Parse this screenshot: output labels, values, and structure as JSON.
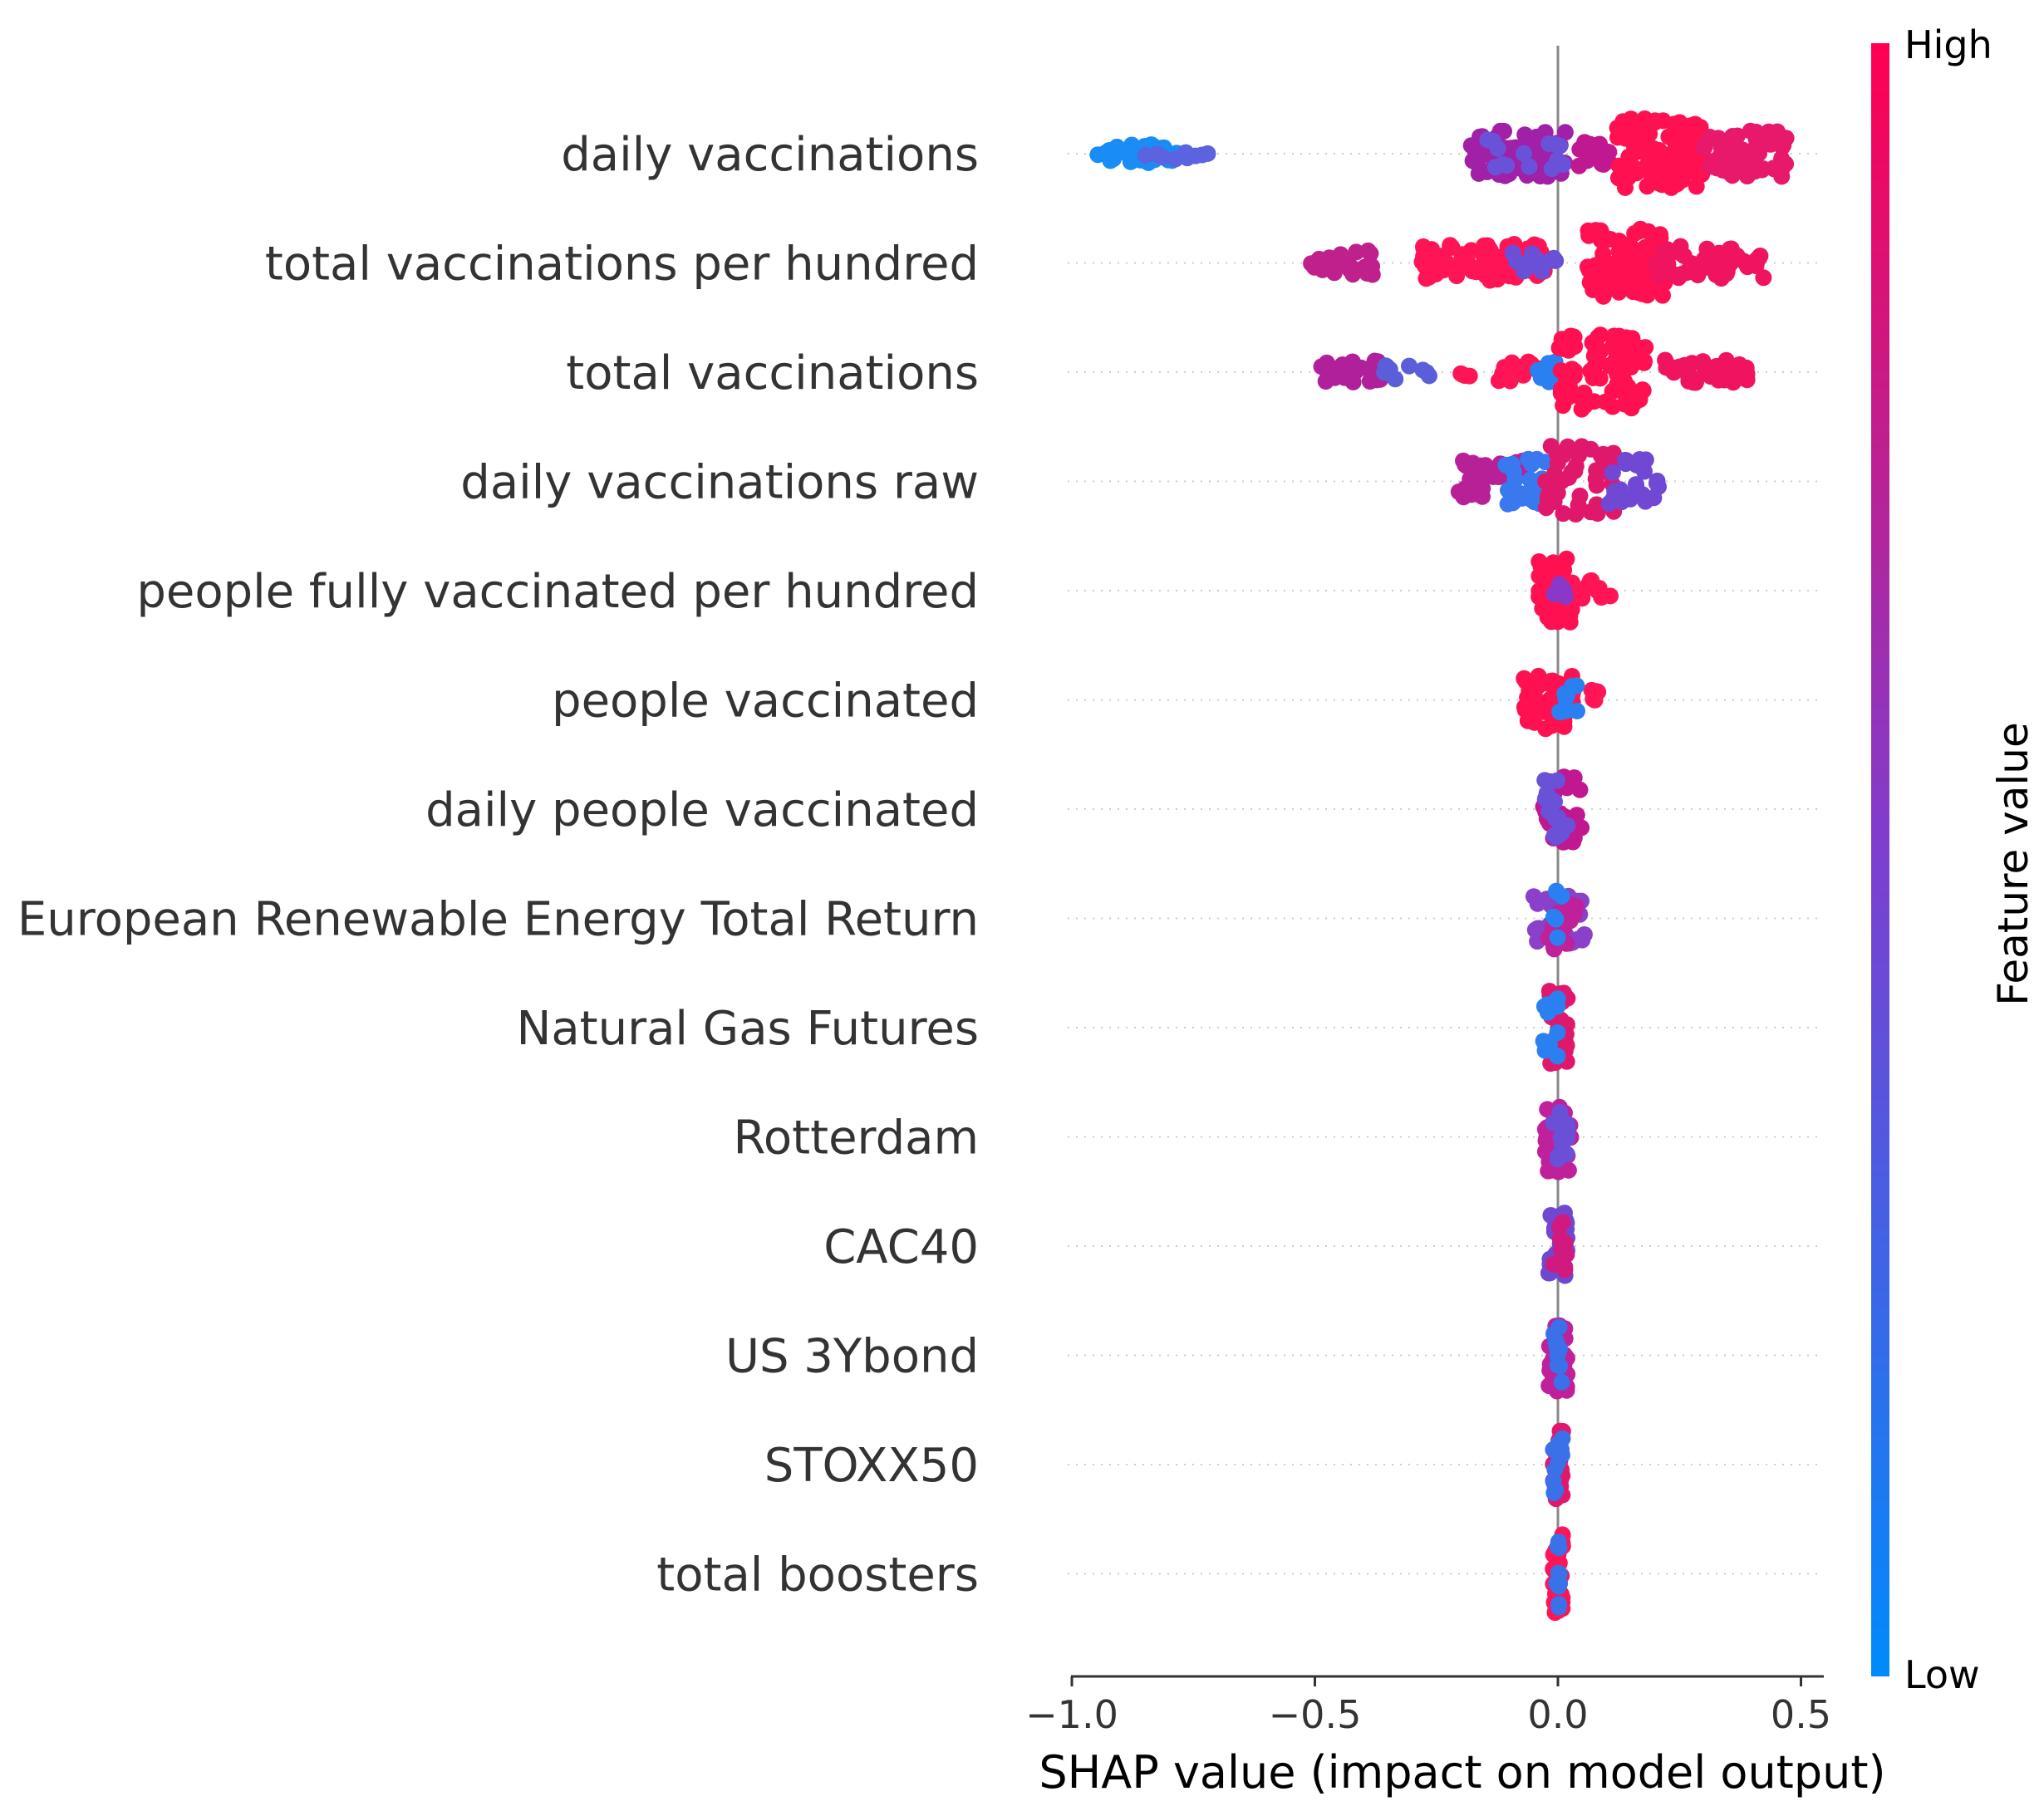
{
  "chart_data": {
    "type": "scatter",
    "subtype": "shap-beeswarm-summary",
    "xlabel": "SHAP value (impact on model output)",
    "xlim": [
      -1.0,
      0.55
    ],
    "xticks": [
      -1.0,
      -0.5,
      0.0,
      0.5
    ],
    "xtick_labels": [
      "−1.0",
      "−0.5",
      "0.0",
      "0.5"
    ],
    "colorbar": {
      "title": "Feature value",
      "high_label": "High",
      "low_label": "Low",
      "low_color": "#008bfb",
      "mid_color": "#7c3fd0",
      "high_color": "#ff0051"
    },
    "features": [
      {
        "name": "daily vaccinations",
        "clusters": [
          {
            "start": -0.95,
            "end": -0.78,
            "count": 40,
            "spread": 0.22,
            "color": "#1a8cf5"
          },
          {
            "start": -0.85,
            "end": -0.72,
            "count": 10,
            "spread": 0.14,
            "color": "#5b63e0"
          },
          {
            "start": -0.18,
            "end": 0.02,
            "count": 70,
            "spread": 0.55,
            "color": "#a020a8"
          },
          {
            "start": -0.18,
            "end": 0.05,
            "count": 14,
            "spread": 0.4,
            "color": "#6a52d8"
          },
          {
            "start": 0.04,
            "end": 0.12,
            "count": 16,
            "spread": 0.3,
            "color": "#c01890"
          },
          {
            "start": 0.12,
            "end": 0.3,
            "count": 90,
            "spread": 0.85,
            "color": "#ff1050"
          },
          {
            "start": 0.3,
            "end": 0.48,
            "count": 55,
            "spread": 0.55,
            "color": "#e8186a"
          }
        ]
      },
      {
        "name": "total vaccinations per hundred",
        "clusters": [
          {
            "start": -0.52,
            "end": -0.38,
            "count": 25,
            "spread": 0.3,
            "color": "#c0208c"
          },
          {
            "start": -0.28,
            "end": -0.02,
            "count": 80,
            "spread": 0.45,
            "color": "#ff1456"
          },
          {
            "start": -0.1,
            "end": 0.0,
            "count": 12,
            "spread": 0.25,
            "color": "#6a50d6"
          },
          {
            "start": 0.06,
            "end": 0.22,
            "count": 80,
            "spread": 0.85,
            "color": "#ff1050"
          },
          {
            "start": 0.2,
            "end": 0.43,
            "count": 50,
            "spread": 0.4,
            "color": "#f01460"
          }
        ]
      },
      {
        "name": "total vaccinations",
        "clusters": [
          {
            "start": -0.5,
            "end": -0.36,
            "count": 25,
            "spread": 0.3,
            "color": "#b0209a"
          },
          {
            "start": -0.36,
            "end": -0.26,
            "count": 10,
            "spread": 0.18,
            "color": "#5a5ed8"
          },
          {
            "start": -0.2,
            "end": -0.18,
            "count": 4,
            "spread": 0.15,
            "color": "#ff1456"
          },
          {
            "start": -0.13,
            "end": -0.02,
            "count": 16,
            "spread": 0.25,
            "color": "#ff1456"
          },
          {
            "start": -0.05,
            "end": 0.0,
            "count": 10,
            "spread": 0.25,
            "color": "#2a80f0"
          },
          {
            "start": 0.0,
            "end": 0.18,
            "count": 90,
            "spread": 0.9,
            "color": "#ff1050"
          },
          {
            "start": 0.22,
            "end": 0.39,
            "count": 45,
            "spread": 0.3,
            "color": "#f01460"
          }
        ]
      },
      {
        "name": "daily vaccinations raw",
        "clusters": [
          {
            "start": -0.21,
            "end": -0.07,
            "count": 40,
            "spread": 0.5,
            "color": "#b82098"
          },
          {
            "start": -0.12,
            "end": -0.02,
            "count": 25,
            "spread": 0.55,
            "color": "#3a78f0"
          },
          {
            "start": -0.03,
            "end": 0.12,
            "count": 45,
            "spread": 0.85,
            "color": "#e0186c"
          },
          {
            "start": 0.1,
            "end": 0.21,
            "count": 24,
            "spread": 0.55,
            "color": "#7048d4"
          }
        ]
      },
      {
        "name": "people fully vaccinated per hundred",
        "clusters": [
          {
            "start": -0.04,
            "end": 0.03,
            "count": 55,
            "spread": 0.85,
            "color": "#ff1050"
          },
          {
            "start": 0.02,
            "end": 0.11,
            "count": 14,
            "spread": 0.25,
            "color": "#ff1456"
          },
          {
            "start": -0.01,
            "end": 0.02,
            "count": 6,
            "spread": 0.3,
            "color": "#8a38c8"
          }
        ]
      },
      {
        "name": "people vaccinated",
        "clusters": [
          {
            "start": -0.07,
            "end": 0.03,
            "count": 50,
            "spread": 0.7,
            "color": "#ff1050"
          },
          {
            "start": 0.01,
            "end": 0.09,
            "count": 12,
            "spread": 0.25,
            "color": "#ff1456"
          },
          {
            "start": 0.0,
            "end": 0.04,
            "count": 10,
            "spread": 0.4,
            "color": "#2a80f0"
          }
        ]
      },
      {
        "name": "daily people vaccinated",
        "clusters": [
          {
            "start": -0.03,
            "end": 0.05,
            "count": 35,
            "spread": 0.8,
            "color": "#c01890"
          },
          {
            "start": -0.03,
            "end": 0.02,
            "count": 15,
            "spread": 0.7,
            "color": "#6a52d8"
          }
        ]
      },
      {
        "name": "European Renewable Energy Total Return",
        "clusters": [
          {
            "start": -0.05,
            "end": 0.06,
            "count": 30,
            "spread": 0.6,
            "color": "#8a40c8"
          },
          {
            "start": -0.02,
            "end": 0.04,
            "count": 15,
            "spread": 0.8,
            "color": "#c0209a"
          },
          {
            "start": -0.01,
            "end": 0.01,
            "count": 6,
            "spread": 0.7,
            "color": "#2a80f0"
          }
        ]
      },
      {
        "name": "Natural Gas Futures",
        "clusters": [
          {
            "start": -0.02,
            "end": 0.02,
            "count": 35,
            "spread": 0.9,
            "color": "#e0186c"
          },
          {
            "start": -0.03,
            "end": 0.0,
            "count": 12,
            "spread": 0.7,
            "color": "#2a80f0"
          }
        ]
      },
      {
        "name": "Rotterdam",
        "clusters": [
          {
            "start": -0.03,
            "end": 0.03,
            "count": 40,
            "spread": 0.85,
            "color": "#c0209a"
          },
          {
            "start": -0.02,
            "end": 0.02,
            "count": 15,
            "spread": 0.6,
            "color": "#6a50d6"
          }
        ]
      },
      {
        "name": "CAC40",
        "clusters": [
          {
            "start": -0.02,
            "end": 0.02,
            "count": 30,
            "spread": 0.9,
            "color": "#7048d0"
          },
          {
            "start": -0.01,
            "end": 0.02,
            "count": 12,
            "spread": 0.7,
            "color": "#d01a80"
          }
        ]
      },
      {
        "name": "US 3Ybond",
        "clusters": [
          {
            "start": -0.02,
            "end": 0.02,
            "count": 30,
            "spread": 0.9,
            "color": "#c0209a"
          },
          {
            "start": -0.01,
            "end": 0.01,
            "count": 10,
            "spread": 0.7,
            "color": "#3a70e8"
          }
        ]
      },
      {
        "name": "STOXX50",
        "clusters": [
          {
            "start": -0.01,
            "end": 0.01,
            "count": 30,
            "spread": 0.9,
            "color": "#e0186c"
          },
          {
            "start": -0.01,
            "end": 0.01,
            "count": 12,
            "spread": 0.8,
            "color": "#3a70e8"
          }
        ]
      },
      {
        "name": "total boosters",
        "clusters": [
          {
            "start": -0.01,
            "end": 0.01,
            "count": 40,
            "spread": 0.95,
            "color": "#ff1456"
          },
          {
            "start": -0.005,
            "end": 0.005,
            "count": 12,
            "spread": 0.85,
            "color": "#3a70e8"
          }
        ]
      }
    ]
  }
}
